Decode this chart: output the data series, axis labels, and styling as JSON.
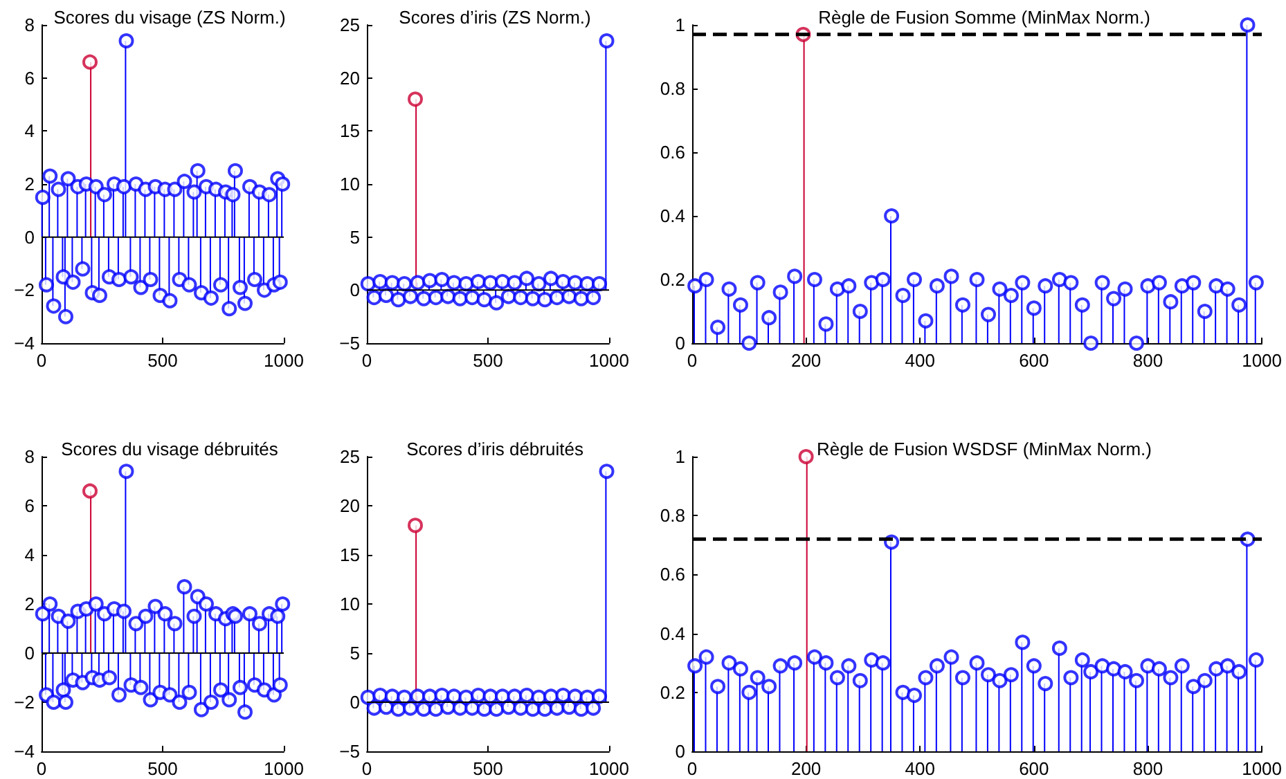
{
  "chart_data": [
    {
      "type": "lollipop",
      "title": "Scores du visage (ZS Norm.)",
      "marker": "circle",
      "ref_lines": [
        {
          "axis": "y",
          "value": 0,
          "color": "#000000",
          "line_style": "solid"
        }
      ],
      "grid": false,
      "xlim": [
        0,
        1000
      ],
      "xticks": [
        0,
        500,
        1000
      ],
      "ylim": [
        -4,
        8
      ],
      "yticks": [
        -4,
        -2,
        0,
        2,
        4,
        6,
        8
      ],
      "series": [
        {
          "color": "#0000ff",
          "x": [
            5,
            20,
            35,
            50,
            70,
            90,
            100,
            110,
            130,
            150,
            170,
            185,
            210,
            225,
            240,
            260,
            280,
            300,
            320,
            340,
            350,
            370,
            390,
            410,
            430,
            450,
            470,
            490,
            510,
            530,
            550,
            570,
            590,
            610,
            630,
            645,
            660,
            680,
            700,
            720,
            740,
            760,
            775,
            790,
            800,
            820,
            840,
            860,
            880,
            900,
            920,
            940,
            960,
            975,
            985,
            995
          ],
          "values": [
            1.5,
            -1.8,
            2.3,
            -2.6,
            1.8,
            -1.5,
            -3.0,
            2.2,
            -1.7,
            1.9,
            -1.2,
            2.0,
            -2.1,
            1.9,
            -2.2,
            1.6,
            -1.5,
            2.0,
            -1.6,
            1.9,
            7.4,
            -1.5,
            2.0,
            -1.9,
            1.8,
            -1.6,
            1.9,
            -2.2,
            1.8,
            -2.4,
            1.8,
            -1.6,
            2.1,
            -1.8,
            1.7,
            2.5,
            -2.1,
            1.9,
            -2.3,
            1.8,
            -1.8,
            1.7,
            -2.7,
            1.6,
            2.5,
            -1.9,
            -2.5,
            1.9,
            -1.6,
            1.7,
            -2.0,
            1.6,
            -1.8,
            2.2,
            -1.7,
            2.0
          ]
        },
        {
          "color": "#cc0033",
          "x": [
            200
          ],
          "values": [
            6.6
          ]
        }
      ]
    },
    {
      "type": "lollipop",
      "title": "Scores d’iris (ZS Norm.)",
      "marker": "circle",
      "ref_lines": [
        {
          "axis": "y",
          "value": 0,
          "color": "#000000",
          "line_style": "solid"
        }
      ],
      "grid": false,
      "xlim": [
        0,
        1000
      ],
      "xticks": [
        0,
        500,
        1000
      ],
      "ylim": [
        -5,
        25
      ],
      "yticks": [
        -5,
        0,
        5,
        10,
        15,
        20,
        25
      ],
      "series": [
        {
          "color": "#0000ff",
          "x": [
            5,
            30,
            55,
            80,
            105,
            130,
            155,
            180,
            210,
            235,
            260,
            285,
            310,
            335,
            360,
            385,
            410,
            435,
            460,
            485,
            510,
            535,
            560,
            585,
            610,
            635,
            660,
            685,
            710,
            735,
            760,
            785,
            810,
            835,
            860,
            885,
            910,
            935,
            960,
            990
          ],
          "values": [
            0.6,
            -0.7,
            0.8,
            -0.5,
            0.7,
            -0.9,
            0.6,
            -0.6,
            0.7,
            -0.8,
            0.9,
            -0.7,
            1.0,
            -0.6,
            0.7,
            -0.8,
            0.6,
            -0.7,
            0.8,
            -0.9,
            0.7,
            -1.2,
            0.8,
            -0.6,
            0.7,
            -0.7,
            1.1,
            -0.8,
            0.6,
            -0.9,
            1.1,
            -0.7,
            0.8,
            -0.6,
            0.7,
            -0.8,
            0.6,
            -0.7,
            0.6,
            23.5
          ]
        },
        {
          "color": "#cc0033",
          "x": [
            200
          ],
          "values": [
            18
          ]
        }
      ]
    },
    {
      "type": "lollipop",
      "title": "Règle de Fusion Somme (MinMax Norm.)",
      "marker": "circle",
      "grid": false,
      "xlim": [
        0,
        1000
      ],
      "xticks": [
        0,
        200,
        400,
        600,
        800,
        1000
      ],
      "ylim": [
        0,
        1
      ],
      "yticks": [
        0,
        0.2,
        0.4,
        0.6,
        0.8,
        1
      ],
      "ref_lines": [
        {
          "axis": "y",
          "value": 0.97,
          "color": "#000000",
          "line_style": "dashed"
        }
      ],
      "series": [
        {
          "color": "#0000ff",
          "x": [
            5,
            25,
            45,
            65,
            85,
            100,
            115,
            135,
            155,
            180,
            215,
            235,
            255,
            275,
            295,
            315,
            335,
            350,
            370,
            390,
            410,
            430,
            455,
            475,
            500,
            520,
            540,
            560,
            580,
            600,
            620,
            645,
            665,
            685,
            700,
            720,
            740,
            760,
            780,
            800,
            820,
            840,
            860,
            880,
            900,
            920,
            940,
            960,
            975,
            990
          ],
          "values": [
            0.18,
            0.2,
            0.05,
            0.17,
            0.12,
            0.0,
            0.19,
            0.08,
            0.16,
            0.21,
            0.2,
            0.06,
            0.17,
            0.18,
            0.1,
            0.19,
            0.2,
            0.4,
            0.15,
            0.2,
            0.07,
            0.18,
            0.21,
            0.12,
            0.2,
            0.09,
            0.17,
            0.15,
            0.19,
            0.11,
            0.18,
            0.2,
            0.19,
            0.12,
            0.0,
            0.19,
            0.14,
            0.17,
            0.0,
            0.18,
            0.19,
            0.13,
            0.18,
            0.19,
            0.1,
            0.18,
            0.17,
            0.12,
            1.0,
            0.19
          ]
        },
        {
          "color": "#cc0033",
          "x": [
            195
          ],
          "values": [
            0.97
          ]
        }
      ]
    },
    {
      "type": "lollipop",
      "title": "Scores du visage débruités",
      "marker": "circle",
      "ref_lines": [
        {
          "axis": "y",
          "value": 0,
          "color": "#000000",
          "line_style": "solid"
        }
      ],
      "grid": false,
      "xlim": [
        0,
        1000
      ],
      "xticks": [
        0,
        500,
        1000
      ],
      "ylim": [
        -4,
        8
      ],
      "yticks": [
        -4,
        -2,
        0,
        2,
        4,
        6,
        8
      ],
      "series": [
        {
          "color": "#0000ff",
          "x": [
            5,
            20,
            35,
            50,
            70,
            90,
            100,
            110,
            130,
            150,
            170,
            185,
            210,
            225,
            240,
            260,
            280,
            300,
            320,
            340,
            350,
            370,
            390,
            410,
            430,
            450,
            470,
            490,
            510,
            530,
            550,
            570,
            590,
            610,
            630,
            645,
            660,
            680,
            700,
            720,
            740,
            760,
            775,
            790,
            800,
            820,
            840,
            860,
            880,
            900,
            920,
            940,
            960,
            975,
            985,
            995
          ],
          "values": [
            1.6,
            -1.7,
            2.0,
            -2.0,
            1.5,
            -1.5,
            -2.0,
            1.3,
            -1.1,
            1.7,
            -1.2,
            1.8,
            -1.0,
            2.0,
            -1.1,
            1.6,
            -1.0,
            1.8,
            -1.7,
            1.7,
            7.4,
            -1.3,
            1.2,
            -1.4,
            1.5,
            -1.9,
            1.9,
            -1.6,
            1.6,
            -1.7,
            1.2,
            -2.0,
            2.7,
            -1.6,
            1.5,
            2.3,
            -2.3,
            2.0,
            -2.0,
            1.6,
            -1.5,
            1.4,
            -1.9,
            1.6,
            1.5,
            -1.4,
            -2.4,
            1.6,
            -1.3,
            1.2,
            -1.5,
            1.6,
            -1.7,
            1.5,
            -1.3,
            2.0
          ]
        },
        {
          "color": "#cc0033",
          "x": [
            200
          ],
          "values": [
            6.6
          ]
        }
      ]
    },
    {
      "type": "lollipop",
      "title": "Scores d’iris débruités",
      "marker": "circle",
      "ref_lines": [
        {
          "axis": "y",
          "value": 0,
          "color": "#000000",
          "line_style": "solid"
        }
      ],
      "grid": false,
      "xlim": [
        0,
        1000
      ],
      "xticks": [
        0,
        500,
        1000
      ],
      "ylim": [
        -5,
        25
      ],
      "yticks": [
        -5,
        0,
        5,
        10,
        15,
        20,
        25
      ],
      "series": [
        {
          "color": "#0000ff",
          "x": [
            5,
            30,
            55,
            80,
            105,
            130,
            155,
            180,
            210,
            235,
            260,
            285,
            310,
            335,
            360,
            385,
            410,
            435,
            460,
            485,
            510,
            535,
            560,
            585,
            610,
            635,
            660,
            685,
            710,
            735,
            760,
            785,
            810,
            835,
            860,
            885,
            910,
            935,
            960,
            990
          ],
          "values": [
            0.5,
            -0.6,
            0.7,
            -0.5,
            0.6,
            -0.7,
            0.5,
            -0.6,
            0.6,
            -0.7,
            0.6,
            -0.7,
            0.7,
            -0.5,
            0.6,
            -0.6,
            0.5,
            -0.6,
            0.7,
            -0.7,
            0.6,
            -0.7,
            0.6,
            -0.5,
            0.6,
            -0.6,
            0.7,
            -0.7,
            0.5,
            -0.7,
            0.6,
            -0.6,
            0.7,
            -0.5,
            0.6,
            -0.7,
            0.5,
            -0.6,
            0.6,
            23.5
          ]
        },
        {
          "color": "#cc0033",
          "x": [
            200
          ],
          "values": [
            18
          ]
        }
      ]
    },
    {
      "type": "lollipop",
      "title": "Règle de Fusion WSDSF (MinMax Norm.)",
      "marker": "circle",
      "grid": false,
      "xlim": [
        0,
        1000
      ],
      "xticks": [
        0,
        200,
        400,
        600,
        800,
        1000
      ],
      "ylim": [
        0,
        1
      ],
      "yticks": [
        0,
        0.2,
        0.4,
        0.6,
        0.8,
        1
      ],
      "ref_lines": [
        {
          "axis": "y",
          "value": 0.72,
          "color": "#000000",
          "line_style": "dashed"
        }
      ],
      "series": [
        {
          "color": "#0000ff",
          "x": [
            5,
            25,
            45,
            65,
            85,
            100,
            115,
            135,
            155,
            180,
            215,
            235,
            255,
            275,
            295,
            315,
            335,
            350,
            370,
            390,
            410,
            430,
            455,
            475,
            500,
            520,
            540,
            560,
            580,
            600,
            620,
            645,
            665,
            685,
            700,
            720,
            740,
            760,
            780,
            800,
            820,
            840,
            860,
            880,
            900,
            920,
            940,
            960,
            975,
            990
          ],
          "values": [
            0.29,
            0.32,
            0.22,
            0.3,
            0.28,
            0.2,
            0.25,
            0.22,
            0.29,
            0.3,
            0.32,
            0.3,
            0.25,
            0.29,
            0.24,
            0.31,
            0.3,
            0.71,
            0.2,
            0.19,
            0.25,
            0.29,
            0.32,
            0.25,
            0.3,
            0.26,
            0.24,
            0.26,
            0.37,
            0.29,
            0.23,
            0.35,
            0.25,
            0.31,
            0.27,
            0.29,
            0.28,
            0.27,
            0.24,
            0.29,
            0.28,
            0.25,
            0.29,
            0.22,
            0.24,
            0.28,
            0.29,
            0.27,
            0.72,
            0.31
          ]
        },
        {
          "color": "#cc0033",
          "x": [
            200
          ],
          "values": [
            1.0
          ]
        }
      ]
    }
  ]
}
